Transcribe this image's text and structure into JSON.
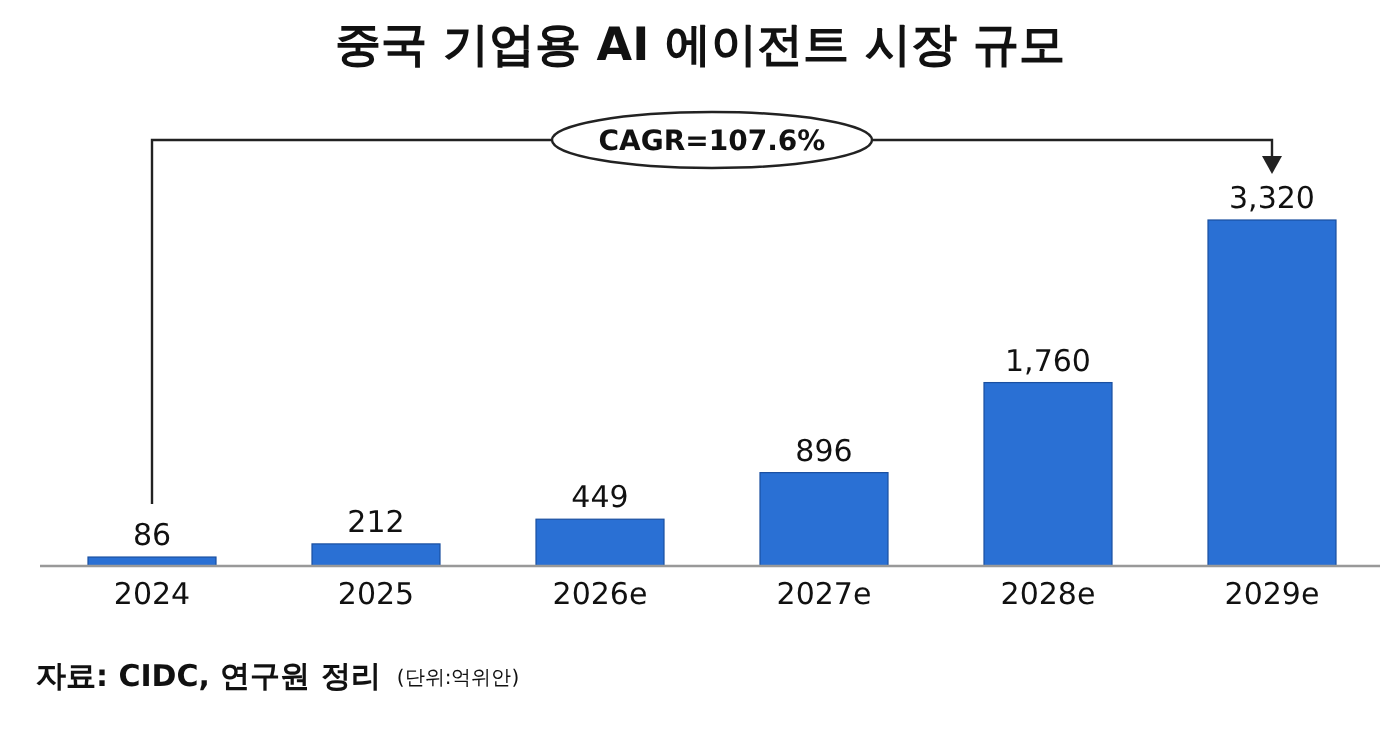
{
  "chart_data": {
    "type": "bar",
    "title": "중국 기업용 AI 에이전트 시장 규모",
    "categories": [
      "2024",
      "2025",
      "2026e",
      "2027e",
      "2028e",
      "2029e"
    ],
    "values": [
      86,
      212,
      449,
      896,
      1760,
      3320
    ],
    "color": "#2a70d4",
    "relative": false,
    "value_labels": [
      "86",
      "212",
      "449",
      "896",
      "1,760",
      "3,320"
    ],
    "annotations": [
      "CAGR=107.6%",
      "자료: CIDC, 연구원 정리",
      "(단위:억위안)"
    ]
  }
}
